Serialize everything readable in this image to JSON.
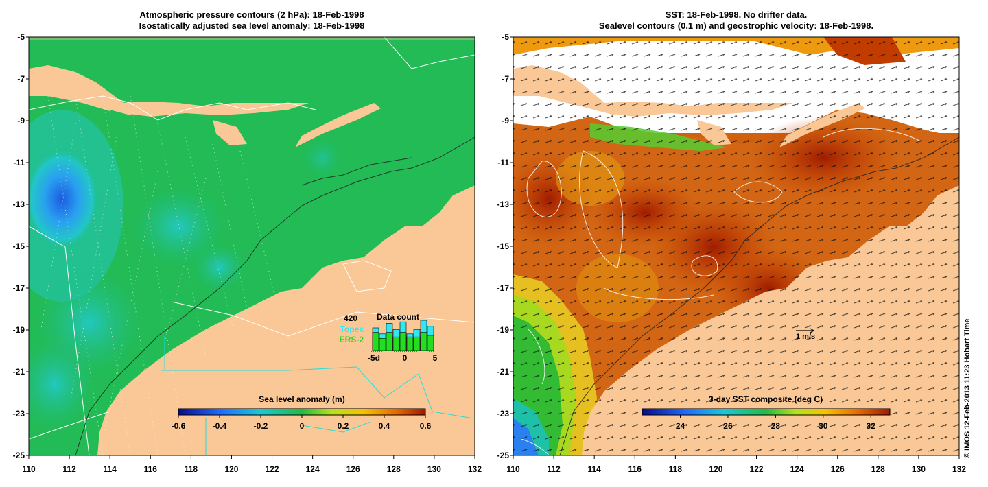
{
  "left_panel": {
    "title_line1": "Atmospheric pressure contours (2 hPa): 18-Feb-1998",
    "title_line2": "Isostatically adjusted sea level anomaly: 18-Feb-1998",
    "colorbar_title": "Sea level anomaly (m)",
    "colorbar_ticks": [
      "-0.6",
      "-0.4",
      "-0.2",
      "0",
      "0.2",
      "0.4",
      "0.6"
    ],
    "inset": {
      "count": "420",
      "topex_label": "Topex",
      "ers2_label": "ERS-2",
      "title": "Data count",
      "axis_labels": [
        "-5d",
        "0",
        "5"
      ],
      "topex_color": "#33e6f0",
      "ers2_color": "#22dd22"
    }
  },
  "right_panel": {
    "title_line1": "SST: 18-Feb-1998. No drifter data.",
    "title_line2": "Sealevel contours (0.1 m) and geostrophic velocity: 18-Feb-1998.",
    "colorbar_title": "3-day SST composite (deg C)",
    "colorbar_ticks": [
      "24",
      "26",
      "28",
      "30",
      "32"
    ],
    "velocity_scale_label": "1 m/s"
  },
  "y_ticks": [
    "-5",
    "-7",
    "-9",
    "-11",
    "-13",
    "-15",
    "-17",
    "-19",
    "-21",
    "-23",
    "-25"
  ],
  "x_ticks": [
    "110",
    "112",
    "114",
    "116",
    "118",
    "120",
    "122",
    "124",
    "126",
    "128",
    "130",
    "132"
  ],
  "credit": "© IMOS 12-Feb-2013 11:23 Hobart Time",
  "colors": {
    "land": "#f9c896",
    "ocean_green": "#22bb55",
    "sst_warm": "#cc4400",
    "sst_hot": "#a82200",
    "sst_orange": "#ee9900"
  }
}
